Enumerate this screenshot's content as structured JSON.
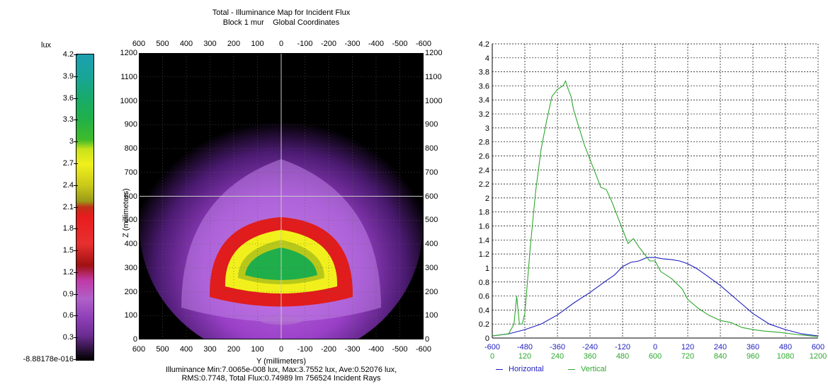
{
  "map": {
    "title": "Total - Illuminance Map for Incident Flux",
    "subtitle_block": "Block 1 mur",
    "subtitle_coords": "Global Coordinates",
    "ylabel": "Z (millimeters)",
    "xlabel": "Y (millimeters)",
    "stats_line1": "Illuminance Min:7.0065e-008 lux, Max:3.7552 lux, Ave:0.52076 lux,",
    "stats_line2": "RMS:0.7748, Total Flux:0.74989 lm 756524 Incident Rays",
    "x_ticks": [
      "600",
      "500",
      "400",
      "300",
      "200",
      "100",
      "0",
      "-100",
      "-200",
      "-300",
      "-400",
      "-500",
      "-600"
    ],
    "y_ticks": [
      "1200",
      "1100",
      "1000",
      "900",
      "800",
      "700",
      "600",
      "500",
      "400",
      "300",
      "200",
      "100",
      "0"
    ]
  },
  "colorbar": {
    "unit": "lux",
    "ticks": [
      "4.2",
      "3.9",
      "3.6",
      "3.3",
      "3",
      "2.7",
      "2.4",
      "2.1",
      "1.8",
      "1.5",
      "1.2",
      "0.9",
      "0.6",
      "0.3",
      "-8.88178e-016"
    ],
    "colors": [
      "#1c9fb0",
      "#1aa98a",
      "#22b04a",
      "#3cba2a",
      "#8cd01a",
      "#f0ef1c",
      "#c8c81a",
      "#a0a018",
      "#e02020",
      "#e03030",
      "#c01818",
      "#a01890",
      "#a048c0",
      "#8a34b0",
      "#4c1864",
      "#000000"
    ]
  },
  "chart_data": {
    "type": "line",
    "ylim": [
      0,
      4.2
    ],
    "y_ticks": [
      "0",
      "0.2",
      "0.4",
      "0.6",
      "0.8",
      "1",
      "1.2",
      "1.4",
      "1.6",
      "1.8",
      "2",
      "2.2",
      "2.4",
      "2.6",
      "2.8",
      "3",
      "3.2",
      "3.4",
      "3.6",
      "3.8",
      "4",
      "4.2"
    ],
    "x_ticks_horizontal": [
      "-600",
      "-480",
      "-360",
      "-240",
      "-120",
      "0",
      "120",
      "240",
      "360",
      "480",
      "600"
    ],
    "x_ticks_vertical": [
      "0",
      "120",
      "240",
      "360",
      "480",
      "600",
      "720",
      "840",
      "960",
      "1080",
      "1200"
    ],
    "grid": true,
    "legend_position": "bottom",
    "series": [
      {
        "name": "Horizontal",
        "color": "#1f1fbf",
        "xlim": [
          -600,
          600
        ],
        "x": [
          -600,
          -540,
          -480,
          -420,
          -360,
          -300,
          -240,
          -180,
          -150,
          -120,
          -90,
          -60,
          -30,
          0,
          30,
          60,
          90,
          120,
          150,
          180,
          240,
          300,
          360,
          420,
          480,
          540,
          600
        ],
        "y": [
          0.03,
          0.06,
          0.12,
          0.2,
          0.33,
          0.5,
          0.65,
          0.82,
          0.9,
          1.02,
          1.08,
          1.1,
          1.15,
          1.15,
          1.13,
          1.12,
          1.1,
          1.06,
          1.0,
          0.92,
          0.75,
          0.55,
          0.35,
          0.2,
          0.12,
          0.06,
          0.03
        ]
      },
      {
        "name": "Vertical",
        "color": "#2ea82e",
        "xlim": [
          0,
          1200
        ],
        "x": [
          0,
          60,
          80,
          90,
          100,
          110,
          120,
          140,
          160,
          180,
          200,
          220,
          240,
          260,
          270,
          280,
          290,
          300,
          320,
          340,
          360,
          380,
          400,
          420,
          440,
          460,
          480,
          500,
          520,
          540,
          560,
          580,
          600,
          620,
          660,
          700,
          720,
          760,
          800,
          840,
          880,
          920,
          960,
          1000,
          1060,
          1120,
          1200
        ],
        "y": [
          0.03,
          0.06,
          0.2,
          0.6,
          0.2,
          0.2,
          0.35,
          1.3,
          2.1,
          2.7,
          3.1,
          3.45,
          3.55,
          3.6,
          3.67,
          3.55,
          3.45,
          3.25,
          3.0,
          2.75,
          2.55,
          2.35,
          2.15,
          2.12,
          1.95,
          1.75,
          1.55,
          1.35,
          1.42,
          1.3,
          1.2,
          1.1,
          1.1,
          0.95,
          0.85,
          0.7,
          0.55,
          0.42,
          0.32,
          0.25,
          0.22,
          0.15,
          0.12,
          0.1,
          0.08,
          0.05,
          0.02
        ]
      }
    ]
  }
}
